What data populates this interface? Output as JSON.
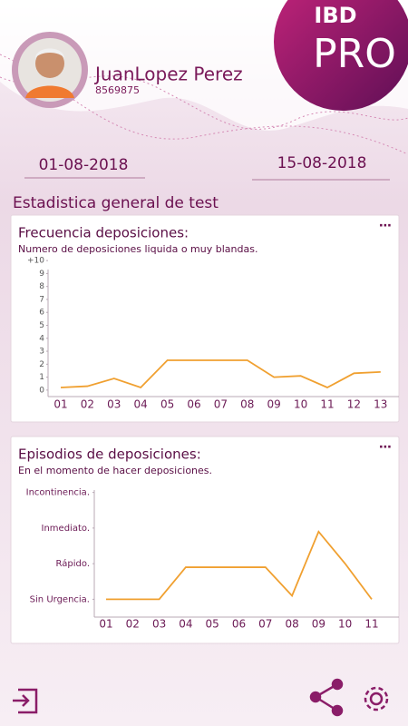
{
  "header": {
    "logo_top": "IBD",
    "logo_bottom": "PRO",
    "name": "JuanLopez Perez",
    "id": "8569875"
  },
  "dates": {
    "from": "01-08-2018",
    "to": "15-08-2018"
  },
  "section_title": "Estadistica general de test",
  "chart_data": [
    {
      "type": "line",
      "title": "Frecuencia deposiciones:",
      "subtitle": "Numero de deposiciones liquida o muy blandas.",
      "categories": [
        "01",
        "02",
        "03",
        "04",
        "05",
        "06",
        "07",
        "08",
        "09",
        "10",
        "11",
        "12",
        "13"
      ],
      "series": [
        {
          "color": "#f0a030",
          "values": [
            0.2,
            0.3,
            0.9,
            0.2,
            2.3,
            2.3,
            2.3,
            2.3,
            1.0,
            1.1,
            0.2,
            1.3,
            1.4
          ]
        }
      ],
      "ylim": [
        -0.5,
        10.5
      ],
      "yticks": [
        0,
        1,
        2,
        3,
        4,
        5,
        6,
        7,
        8,
        9,
        {
          "value": 10,
          "label": "+10"
        }
      ]
    },
    {
      "type": "line",
      "title": "Episodios de deposiciones:",
      "subtitle": "En el momento de hacer deposiciones.",
      "categories": [
        "01",
        "02",
        "03",
        "04",
        "05",
        "06",
        "07",
        "08",
        "09",
        "10",
        "11"
      ],
      "series": [
        {
          "color": "#f0a030",
          "values": [
            0,
            0,
            0,
            0.9,
            0.9,
            0.9,
            0.9,
            0.1,
            1.9,
            1,
            0
          ]
        }
      ],
      "ylim": [
        -0.5,
        3.5
      ],
      "yticks": [
        {
          "value": 0,
          "label": "Sin Urgencia."
        },
        {
          "value": 1,
          "label": "Rápido."
        },
        {
          "value": 2,
          "label": "Inmediato."
        },
        {
          "value": 3,
          "label": "Incontinencia."
        }
      ]
    }
  ]
}
